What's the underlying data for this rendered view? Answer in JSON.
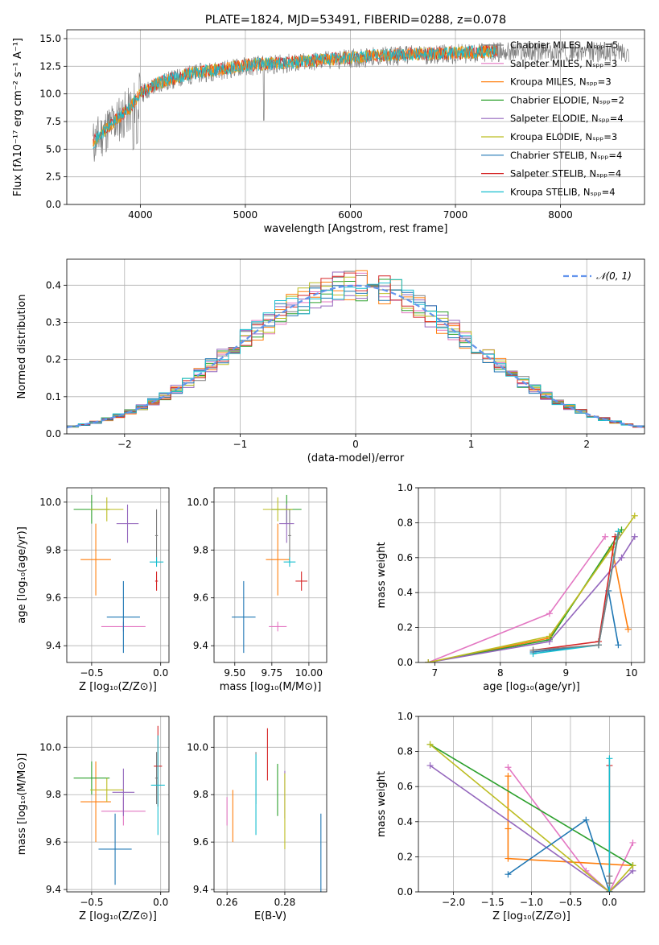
{
  "colors": {
    "Chabrier MILES": "#7f7f7f",
    "Salpeter MILES": "#e377c2",
    "Kroupa MILES": "#ff7f0e",
    "Chabrier ELODIE": "#2ca02c",
    "Salpeter ELODIE": "#9467bd",
    "Kroupa ELODIE": "#bcbd22",
    "Chabrier STELIB": "#1f77b4",
    "Salpeter STELIB": "#d62728",
    "Kroupa STELIB": "#17becf",
    "normal_curve": "#6495ed"
  },
  "chart_data": [
    {
      "id": "spectrum",
      "type": "line",
      "title": "PLATE=1824, MJD=53491, FIBERID=0288, z=0.078",
      "xlabel": "wavelength [Angstrom, rest frame]",
      "ylabel": "Flux [fλ10⁻¹⁷ erg cm⁻² s⁻¹ A⁻¹]",
      "xlim": [
        3300,
        8800
      ],
      "ylim": [
        0,
        15.8
      ],
      "xticks": [
        4000,
        5000,
        6000,
        7000,
        8000
      ],
      "yticks": [
        0.0,
        2.5,
        5.0,
        7.5,
        10.0,
        12.5,
        15.0
      ],
      "xtick_labels": [
        "4000",
        "5000",
        "6000",
        "7000",
        "8000"
      ],
      "ytick_labels": [
        "0.0",
        "2.5",
        "5.0",
        "7.5",
        "10.0",
        "12.5",
        "15.0"
      ],
      "legend_position": "right",
      "legend": [
        {
          "label": "Chabrier MILES, Nₛₚₚ=5",
          "key": "Chabrier MILES"
        },
        {
          "label": "Salpeter MILES, Nₛₚₚ=3",
          "key": "Salpeter MILES"
        },
        {
          "label": "Kroupa MILES, Nₛₚₚ=3",
          "key": "Kroupa MILES"
        },
        {
          "label": "Chabrier ELODIE, Nₛₚₚ=2",
          "key": "Chabrier ELODIE"
        },
        {
          "label": "Salpeter ELODIE, Nₛₚₚ=4",
          "key": "Salpeter ELODIE"
        },
        {
          "label": "Kroupa ELODIE, Nₛₚₚ=3",
          "key": "Kroupa ELODIE"
        },
        {
          "label": "Chabrier STELIB, Nₛₚₚ=4",
          "key": "Chabrier STELIB"
        },
        {
          "label": "Salpeter STELIB, Nₛₚₚ=4",
          "key": "Salpeter STELIB"
        },
        {
          "label": "Kroupa STELIB, Nₛₚₚ=4",
          "key": "Kroupa STELIB"
        }
      ],
      "data_continuum": {
        "x": [
          3550,
          3700,
          3900,
          4000,
          4200,
          4500,
          4800,
          5000,
          5500,
          6000,
          6500,
          7000,
          7400
        ],
        "y": [
          5.5,
          7.0,
          8.5,
          10.0,
          11.0,
          11.8,
          12.2,
          12.5,
          12.8,
          13.2,
          13.5,
          13.6,
          13.8
        ]
      },
      "model_continuum": {
        "x": [
          3550,
          3700,
          3900,
          4000,
          4200,
          4500,
          4800,
          5000,
          5500,
          6000,
          6500,
          7000,
          7400
        ],
        "y": [
          5.6,
          7.1,
          8.7,
          10.1,
          11.1,
          11.9,
          12.3,
          12.6,
          12.9,
          13.3,
          13.6,
          13.7,
          13.9
        ]
      }
    },
    {
      "id": "residual_hist",
      "type": "line",
      "xlabel": "(data-model)/error",
      "ylabel": "Normed distribution",
      "xlim": [
        -2.5,
        2.5
      ],
      "ylim": [
        0,
        0.47
      ],
      "xticks": [
        -2,
        -1,
        0,
        1,
        2
      ],
      "yticks": [
        0.0,
        0.1,
        0.2,
        0.3,
        0.4
      ],
      "xtick_labels": [
        "−2",
        "−1",
        "0",
        "1",
        "2"
      ],
      "ytick_labels": [
        "0.0",
        "0.1",
        "0.2",
        "0.3",
        "0.4"
      ],
      "legend_position": "top-right",
      "legend_label": "𝒩(0, 1)",
      "bin_width": 0.1
    },
    {
      "id": "age_vs_Z",
      "type": "scatter",
      "xlabel": "Z [log₁₀(Z/Z⊙)]",
      "ylabel": "age  [log₁₀(age/yr)]",
      "xlim": [
        -0.68,
        0.06
      ],
      "ylim": [
        9.33,
        10.06
      ],
      "xticks": [
        -0.5,
        0.0
      ],
      "yticks": [
        9.4,
        9.6,
        9.8,
        10.0
      ],
      "xtick_labels": [
        "−0.5",
        "0.0"
      ],
      "ytick_labels": [
        "9.4",
        "9.6",
        "9.8",
        "10.0"
      ],
      "points": [
        {
          "key": "Chabrier MILES",
          "x": -0.03,
          "y": 9.86,
          "xerr": 0.01,
          "yerr": 0.11
        },
        {
          "key": "Salpeter MILES",
          "x": -0.27,
          "y": 9.48,
          "xerr": 0.16,
          "yerr": 0.02
        },
        {
          "key": "Kroupa MILES",
          "x": -0.47,
          "y": 9.76,
          "xerr": 0.11,
          "yerr": 0.15
        },
        {
          "key": "Chabrier ELODIE",
          "x": -0.5,
          "y": 9.97,
          "xerr": 0.13,
          "yerr": 0.06
        },
        {
          "key": "Salpeter ELODIE",
          "x": -0.24,
          "y": 9.91,
          "xerr": 0.08,
          "yerr": 0.08
        },
        {
          "key": "Kroupa ELODIE",
          "x": -0.39,
          "y": 9.97,
          "xerr": 0.12,
          "yerr": 0.05
        },
        {
          "key": "Chabrier STELIB",
          "x": -0.27,
          "y": 9.52,
          "xerr": 0.12,
          "yerr": 0.15
        },
        {
          "key": "Salpeter STELIB",
          "x": -0.03,
          "y": 9.67,
          "xerr": 0.01,
          "yerr": 0.04
        },
        {
          "key": "Kroupa STELIB",
          "x": -0.03,
          "y": 9.75,
          "xerr": 0.05,
          "yerr": 0.02
        }
      ]
    },
    {
      "id": "age_vs_mass",
      "type": "scatter",
      "xlabel": "mass [log₁₀(M/M⊙)]",
      "ylabel": "",
      "xlim": [
        9.36,
        10.12
      ],
      "ylim": [
        9.33,
        10.06
      ],
      "xticks": [
        9.5,
        9.75,
        10.0
      ],
      "yticks": [
        9.4,
        9.6,
        9.8,
        10.0
      ],
      "xtick_labels": [
        "9.50",
        "9.75",
        "10.00"
      ],
      "ytick_labels": [
        "9.4",
        "9.6",
        "9.8",
        "10.0"
      ],
      "points": [
        {
          "key": "Chabrier MILES",
          "x": 9.87,
          "y": 9.86,
          "xerr": 0.01,
          "yerr": 0.11
        },
        {
          "key": "Salpeter MILES",
          "x": 9.79,
          "y": 9.48,
          "xerr": 0.06,
          "yerr": 0.02
        },
        {
          "key": "Kroupa MILES",
          "x": 9.79,
          "y": 9.76,
          "xerr": 0.08,
          "yerr": 0.15
        },
        {
          "key": "Chabrier ELODIE",
          "x": 9.85,
          "y": 9.97,
          "xerr": 0.1,
          "yerr": 0.06
        },
        {
          "key": "Salpeter ELODIE",
          "x": 9.85,
          "y": 9.91,
          "xerr": 0.05,
          "yerr": 0.08
        },
        {
          "key": "Kroupa ELODIE",
          "x": 9.79,
          "y": 9.97,
          "xerr": 0.1,
          "yerr": 0.05
        },
        {
          "key": "Chabrier STELIB",
          "x": 9.56,
          "y": 9.52,
          "xerr": 0.08,
          "yerr": 0.15
        },
        {
          "key": "Salpeter STELIB",
          "x": 9.95,
          "y": 9.67,
          "xerr": 0.04,
          "yerr": 0.04
        },
        {
          "key": "Kroupa STELIB",
          "x": 9.87,
          "y": 9.75,
          "xerr": 0.04,
          "yerr": 0.02
        }
      ]
    },
    {
      "id": "weight_vs_age",
      "type": "line",
      "xlabel": "age  [log₁₀(age/yr)]",
      "ylabel": "mass weight",
      "xlim": [
        6.75,
        10.2
      ],
      "ylim": [
        0,
        1.0
      ],
      "xticks": [
        7,
        8,
        9,
        10
      ],
      "yticks": [
        0.0,
        0.2,
        0.4,
        0.6,
        0.8,
        1.0
      ],
      "xtick_labels": [
        "7",
        "8",
        "9",
        "10"
      ],
      "ytick_labels": [
        "0.0",
        "0.2",
        "0.4",
        "0.6",
        "0.8",
        "1.0"
      ],
      "series": [
        {
          "key": "Salpeter MILES",
          "x": [
            6.9,
            8.75,
            9.6
          ],
          "y": [
            0.0,
            0.28,
            0.72
          ]
        },
        {
          "key": "Kroupa MILES",
          "x": [
            6.9,
            8.75,
            9.7,
            9.95
          ],
          "y": [
            0.0,
            0.14,
            0.66,
            0.19
          ]
        },
        {
          "key": "Chabrier ELODIE",
          "x": [
            6.9,
            8.75,
            9.85
          ],
          "y": [
            0.0,
            0.13,
            0.76
          ]
        },
        {
          "key": "Salpeter ELODIE",
          "x": [
            6.9,
            8.75,
            9.85,
            10.05
          ],
          "y": [
            0.0,
            0.12,
            0.6,
            0.72
          ]
        },
        {
          "key": "Kroupa ELODIE",
          "x": [
            6.9,
            8.75,
            10.05
          ],
          "y": [
            0.0,
            0.15,
            0.84
          ]
        },
        {
          "key": "Chabrier STELIB",
          "x": [
            8.5,
            9.5,
            9.65,
            9.8
          ],
          "y": [
            0.06,
            0.1,
            0.41,
            0.1
          ]
        },
        {
          "key": "Salpeter STELIB",
          "x": [
            8.5,
            9.5,
            9.75
          ],
          "y": [
            0.07,
            0.12,
            0.72
          ]
        },
        {
          "key": "Kroupa STELIB",
          "x": [
            8.5,
            9.5,
            9.8
          ],
          "y": [
            0.05,
            0.1,
            0.75
          ]
        },
        {
          "key": "Chabrier MILES",
          "x": [
            8.5,
            9.5,
            9.8
          ],
          "y": [
            0.07,
            0.1,
            0.73
          ]
        }
      ]
    },
    {
      "id": "mass_vs_Z",
      "type": "scatter",
      "xlabel": "Z [log₁₀(Z/Z⊙)]",
      "ylabel": "mass [log₁₀(M/M⊙)]",
      "xlim": [
        -0.68,
        0.06
      ],
      "ylim": [
        9.39,
        10.13
      ],
      "xticks": [
        -0.5,
        0.0
      ],
      "yticks": [
        9.4,
        9.6,
        9.8,
        10.0
      ],
      "xtick_labels": [
        "−0.5",
        "0.0"
      ],
      "ytick_labels": [
        "9.4",
        "9.6",
        "9.8",
        "10.0"
      ],
      "points": [
        {
          "key": "Chabrier MILES",
          "x": -0.03,
          "y": 9.87,
          "xerr": 0.01,
          "yerr": 0.11
        },
        {
          "key": "Salpeter MILES",
          "x": -0.27,
          "y": 9.73,
          "xerr": 0.16,
          "yerr": 0.06
        },
        {
          "key": "Kroupa MILES",
          "x": -0.47,
          "y": 9.77,
          "xerr": 0.11,
          "yerr": 0.17
        },
        {
          "key": "Chabrier ELODIE",
          "x": -0.5,
          "y": 9.87,
          "xerr": 0.13,
          "yerr": 0.07
        },
        {
          "key": "Salpeter ELODIE",
          "x": -0.27,
          "y": 9.81,
          "xerr": 0.08,
          "yerr": 0.1
        },
        {
          "key": "Kroupa ELODIE",
          "x": -0.39,
          "y": 9.82,
          "xerr": 0.12,
          "yerr": 0.05
        },
        {
          "key": "Chabrier STELIB",
          "x": -0.33,
          "y": 9.57,
          "xerr": 0.12,
          "yerr": 0.15
        },
        {
          "key": "Salpeter STELIB",
          "x": -0.02,
          "y": 9.92,
          "xerr": 0.03,
          "yerr": 0.17
        },
        {
          "key": "Kroupa STELIB",
          "x": -0.02,
          "y": 9.84,
          "xerr": 0.05,
          "yerr": 0.21
        }
      ]
    },
    {
      "id": "mass_vs_ebv",
      "type": "scatter",
      "xlabel": "E(B-V)",
      "ylabel": "",
      "xlim": [
        0.2555,
        0.2945
      ],
      "ylim": [
        9.39,
        10.13
      ],
      "xticks": [
        0.26,
        0.28
      ],
      "yticks": [
        9.4,
        9.6,
        9.8,
        10.0
      ],
      "xtick_labels": [
        "0.26",
        "0.28"
      ],
      "ytick_labels": [
        "9.4",
        "9.6",
        "9.8",
        "10.0"
      ],
      "points": [
        {
          "key": "Chabrier MILES",
          "x": 0.27,
          "y": 9.87,
          "xerr": 0,
          "yerr": 0.11
        },
        {
          "key": "Salpeter MILES",
          "x": 0.26,
          "y": 9.73,
          "xerr": 0,
          "yerr": 0.06
        },
        {
          "key": "Kroupa MILES",
          "x": 0.262,
          "y": 9.71,
          "xerr": 0,
          "yerr": 0.11
        },
        {
          "key": "Chabrier ELODIE",
          "x": 0.2775,
          "y": 9.82,
          "xerr": 0,
          "yerr": 0.11
        },
        {
          "key": "Salpeter ELODIE",
          "x": 0.28,
          "y": 9.8,
          "xerr": 0,
          "yerr": 0.1
        },
        {
          "key": "Kroupa ELODIE",
          "x": 0.28,
          "y": 9.73,
          "xerr": 0,
          "yerr": 0.16
        },
        {
          "key": "Chabrier STELIB",
          "x": 0.2925,
          "y": 9.52,
          "xerr": 0,
          "yerr": 0.2
        },
        {
          "key": "Salpeter STELIB",
          "x": 0.274,
          "y": 9.97,
          "xerr": 0,
          "yerr": 0.11
        },
        {
          "key": "Kroupa STELIB",
          "x": 0.27,
          "y": 9.8,
          "xerr": 0,
          "yerr": 0.17
        }
      ]
    },
    {
      "id": "weight_vs_Z",
      "type": "line",
      "xlabel": "Z [log₁₀(Z/Z⊙)]",
      "ylabel": "mass weight",
      "xlim": [
        -2.45,
        0.45
      ],
      "ylim": [
        0,
        1.0
      ],
      "xticks": [
        -2.0,
        -1.5,
        -1.0,
        -0.5,
        0.0
      ],
      "yticks": [
        0.0,
        0.2,
        0.4,
        0.6,
        0.8,
        1.0
      ],
      "xtick_labels": [
        "−2.0",
        "−1.5",
        "−1.0",
        "−0.5",
        "0.0"
      ],
      "ytick_labels": [
        "0.0",
        "0.2",
        "0.4",
        "0.6",
        "0.8",
        "1.0"
      ],
      "series": [
        {
          "key": "Salpeter MILES",
          "x": [
            -1.3,
            -0.3,
            0.0,
            0.3
          ],
          "y": [
            0.71,
            0.12,
            0.0,
            0.28
          ]
        },
        {
          "key": "Kroupa MILES",
          "x": [
            -1.3,
            -1.3,
            -1.3,
            0.3
          ],
          "y": [
            0.66,
            0.36,
            0.19,
            0.15
          ]
        },
        {
          "key": "Chabrier ELODIE",
          "x": [
            -2.3,
            0.3
          ],
          "y": [
            0.84,
            0.15
          ]
        },
        {
          "key": "Salpeter ELODIE",
          "x": [
            -2.3,
            0.0,
            0.3
          ],
          "y": [
            0.72,
            0.0,
            0.12
          ]
        },
        {
          "key": "Kroupa ELODIE",
          "x": [
            -2.3,
            0.0,
            0.3
          ],
          "y": [
            0.84,
            0.0,
            0.15
          ]
        },
        {
          "key": "Chabrier STELIB",
          "x": [
            -1.3,
            -0.3,
            0.0
          ],
          "y": [
            0.1,
            0.41,
            0.0
          ]
        },
        {
          "key": "Salpeter STELIB",
          "x": [
            0.0,
            0.0
          ],
          "y": [
            0.0,
            0.72
          ]
        },
        {
          "key": "Kroupa STELIB",
          "x": [
            0.0,
            0.0
          ],
          "y": [
            0.0,
            0.76
          ]
        },
        {
          "key": "Chabrier MILES",
          "x": [
            0.0,
            0.0
          ],
          "y": [
            0.05,
            0.09
          ]
        }
      ]
    }
  ]
}
